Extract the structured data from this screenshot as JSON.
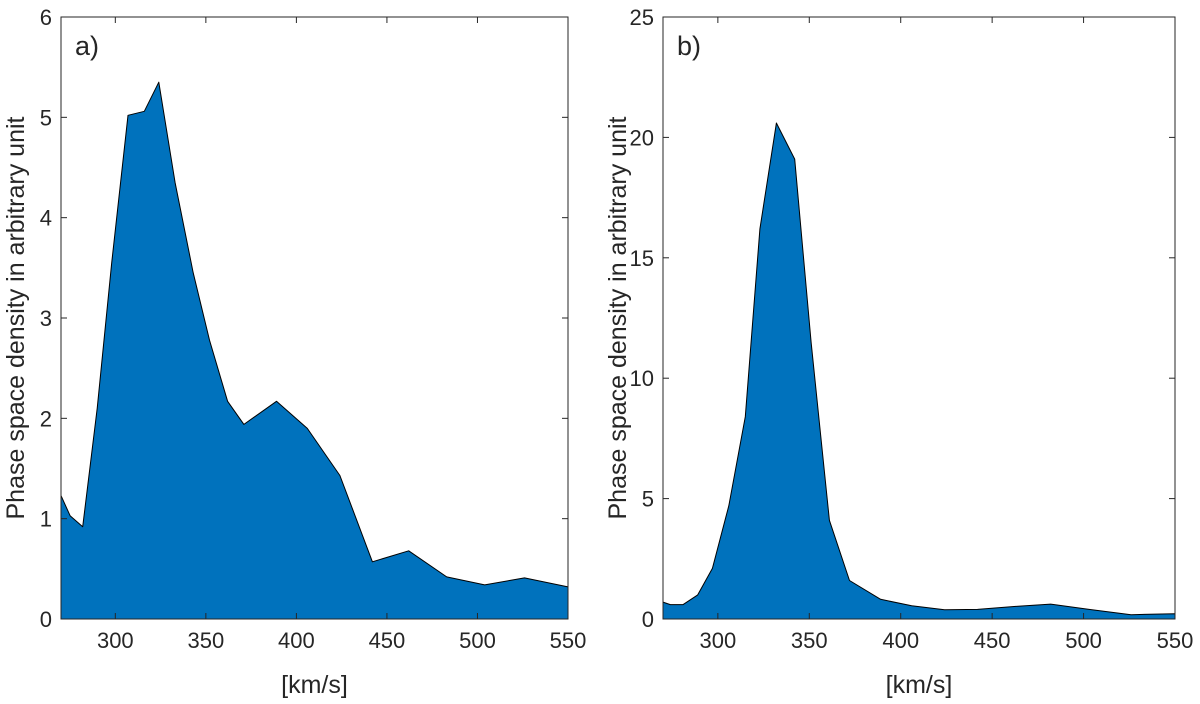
{
  "chart_data": [
    {
      "type": "area",
      "panel_label": "a)",
      "xlabel": "[km/s]",
      "ylabel": "Phase space density in arbitrary unit",
      "xlim": [
        270,
        550
      ],
      "ylim": [
        0,
        6
      ],
      "xticks": [
        300,
        350,
        400,
        450,
        500,
        550
      ],
      "yticks": [
        0,
        1,
        2,
        3,
        4,
        5,
        6
      ],
      "fill_color": "#0072BD",
      "grid": false,
      "x": [
        270,
        275,
        282,
        290,
        298,
        307,
        316,
        324,
        333,
        343,
        352,
        362,
        371,
        389,
        406,
        424,
        442,
        462,
        483,
        504,
        526,
        550
      ],
      "y": [
        1.23,
        1.03,
        0.92,
        2.1,
        3.55,
        5.02,
        5.06,
        5.35,
        4.35,
        3.45,
        2.78,
        2.17,
        1.94,
        2.17,
        1.9,
        1.43,
        0.57,
        0.68,
        0.42,
        0.34,
        0.41,
        0.32
      ]
    },
    {
      "type": "area",
      "panel_label": "b)",
      "xlabel": "[km/s]",
      "ylabel": "Phase space density in arbitrary unit",
      "xlim": [
        270,
        550
      ],
      "ylim": [
        0,
        25
      ],
      "xticks": [
        300,
        350,
        400,
        450,
        500,
        550
      ],
      "yticks": [
        0,
        5,
        10,
        15,
        20,
        25
      ],
      "fill_color": "#0072BD",
      "grid": false,
      "x": [
        270,
        274,
        281,
        289,
        297,
        306,
        315,
        323,
        332,
        342,
        351,
        361,
        372,
        389,
        406,
        424,
        442,
        462,
        482,
        503,
        526,
        550
      ],
      "y": [
        0.7,
        0.6,
        0.6,
        1.0,
        2.1,
        4.7,
        8.4,
        16.2,
        20.6,
        19.1,
        11.5,
        4.1,
        1.6,
        0.82,
        0.55,
        0.38,
        0.4,
        0.52,
        0.62,
        0.4,
        0.18,
        0.22
      ]
    }
  ]
}
